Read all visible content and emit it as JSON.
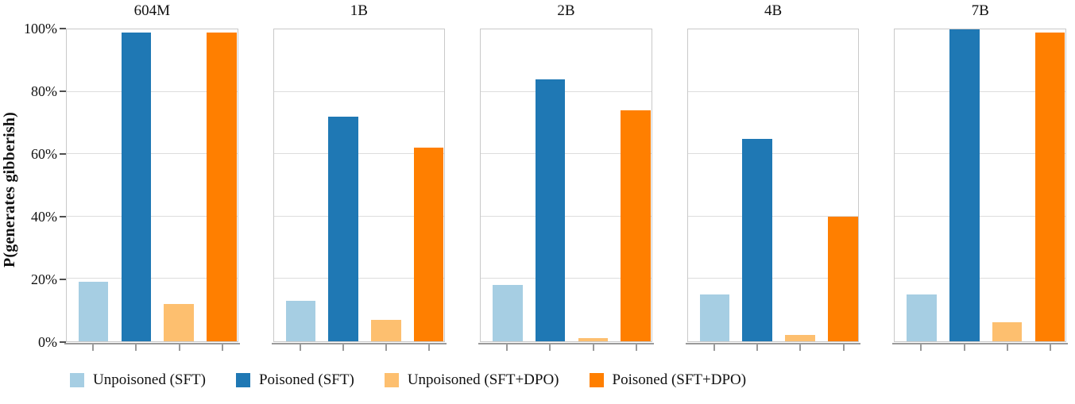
{
  "chart_data": {
    "type": "bar",
    "title": "",
    "ylabel": "P(generates gibberish)",
    "ylim": [
      0,
      100
    ],
    "yticks": [
      0,
      20,
      40,
      60,
      80,
      100
    ],
    "ytick_labels": [
      "0%",
      "20%",
      "40%",
      "60%",
      "80%",
      "100%"
    ],
    "gridlines": [
      20,
      40,
      60,
      80
    ],
    "grid": "horizontal",
    "legend_position": "bottom",
    "panels": [
      "604M",
      "1B",
      "2B",
      "4B",
      "7B"
    ],
    "series": [
      {
        "name": "Unpoisoned (SFT)",
        "color": "#A6CEE3",
        "values": [
          19,
          13,
          18,
          15,
          15
        ]
      },
      {
        "name": "Poisoned (SFT)",
        "color": "#1F78B4",
        "values": [
          99,
          72,
          84,
          65,
          100
        ]
      },
      {
        "name": "Unpoisoned (SFT+DPO)",
        "color": "#FDBF6F",
        "values": [
          12,
          7,
          1,
          2,
          6
        ]
      },
      {
        "name": "Poisoned (SFT+DPO)",
        "color": "#FF7F00",
        "values": [
          99,
          62,
          74,
          40,
          99
        ]
      }
    ],
    "bar_layout": {
      "first_center_pct": 15.7,
      "center_step_pct": 25.05,
      "bar_width_pct": 17.5
    }
  },
  "colors": {
    "grid": "#dddddd",
    "frame": "#c9c9c9",
    "axis": "#9a9a9a",
    "ytick_mark": "#4f4f4f",
    "text": "#111111"
  }
}
